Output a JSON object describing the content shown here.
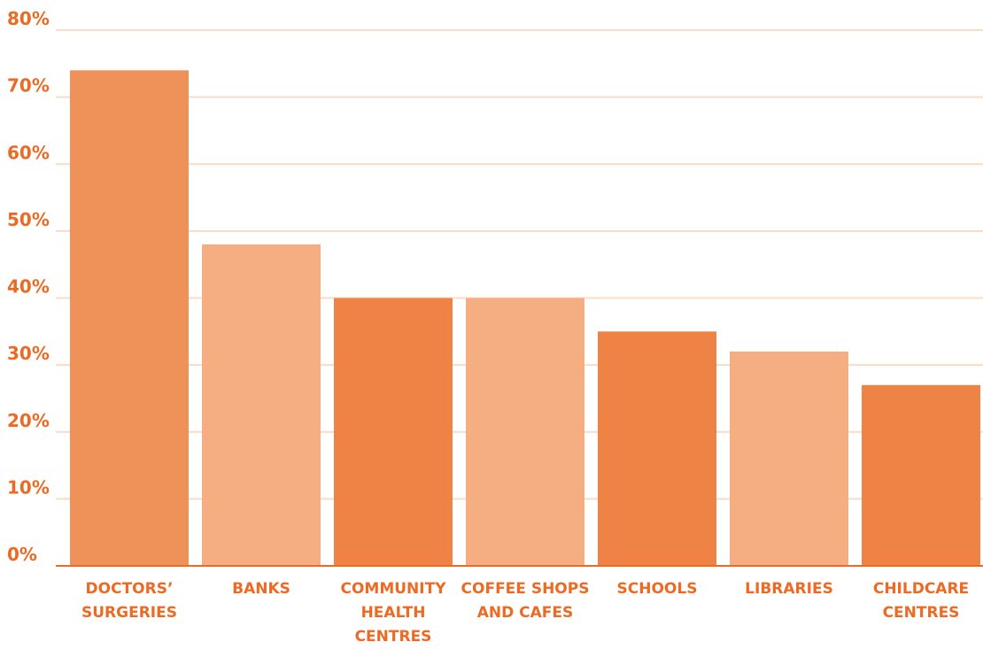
{
  "chart_data": {
    "type": "bar",
    "categories": [
      "DOCTORS’ SURGERIES",
      "BANKS",
      "COMMUNITY HEALTH CENTRES",
      "COFFEE SHOPS AND CAFES",
      "SCHOOLS",
      "LIBRARIES",
      "CHILDCARE CENTRES"
    ],
    "category_label_lines": [
      [
        "DOCTORS’",
        "SURGERIES"
      ],
      [
        "BANKS"
      ],
      [
        "COMMUNITY",
        "HEALTH",
        "CENTRES"
      ],
      [
        "COFFEE SHOPS",
        "AND CAFES"
      ],
      [
        "SCHOOLS"
      ],
      [
        "LIBRARIES"
      ],
      [
        "CHILDCARE",
        "CENTRES"
      ]
    ],
    "values": [
      74,
      48,
      40,
      40,
      35,
      32,
      27
    ],
    "ylim": [
      0,
      80
    ],
    "yticks": [
      0,
      10,
      20,
      30,
      40,
      50,
      60,
      70,
      80
    ],
    "ytick_labels": [
      "0%",
      "10%",
      "20%",
      "30%",
      "40%",
      "50%",
      "60%",
      "70%",
      "80%"
    ],
    "bar_colors": [
      "#ef925a",
      "#f4ae81",
      "#ee8345",
      "#f4ae81",
      "#ee8345",
      "#f4ae81",
      "#ee8345"
    ],
    "label_color": "#ec6a23",
    "gridline_color": "#f8dcc6",
    "axis_color": "#ec6a23",
    "grid": true,
    "legend": "none",
    "title": "",
    "xlabel": "",
    "ylabel": ""
  }
}
